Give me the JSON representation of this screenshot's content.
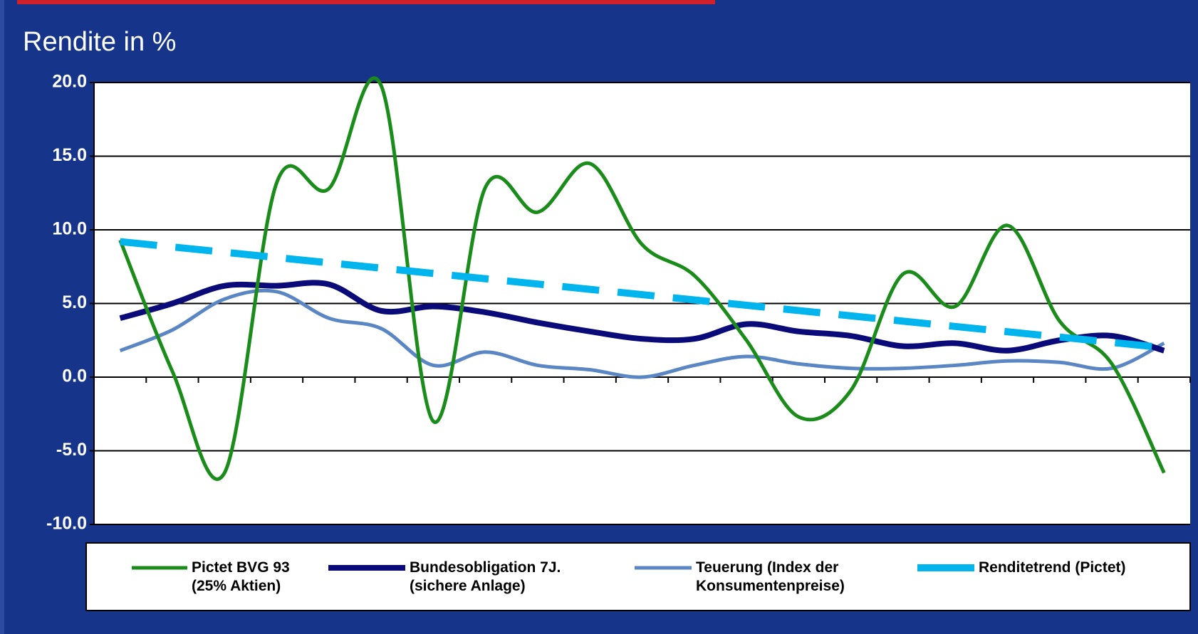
{
  "chart_data": {
    "type": "line",
    "title": "Rendite in %",
    "categories": [
      null,
      null,
      null,
      null,
      null,
      null,
      null,
      null,
      null,
      null,
      null,
      null,
      null,
      null,
      null,
      null,
      null,
      null,
      null,
      null,
      null
    ],
    "ylim": [
      -10,
      20
    ],
    "yticks": [
      {
        "value": -10,
        "label": "-10.0"
      },
      {
        "value": -5,
        "label": "-5.0"
      },
      {
        "value": 0,
        "label": "0.0"
      },
      {
        "value": 5,
        "label": "5.0"
      },
      {
        "value": 10,
        "label": "10.0"
      },
      {
        "value": 15,
        "label": "15.0"
      },
      {
        "value": 20,
        "label": "20.0"
      }
    ],
    "grid": true,
    "series": [
      {
        "name": "Pictet BVG 93\n(25% Aktien)",
        "color": "#1a8c1a",
        "values": [
          9.3,
          0.4,
          -6.5,
          13.2,
          12.8,
          19.8,
          -3.0,
          12.9,
          11.2,
          14.5,
          9.0,
          6.9,
          2.5,
          -2.7,
          -0.9,
          7.0,
          4.8,
          10.3,
          3.8,
          0.9,
          -6.5
        ]
      },
      {
        "name": "Bundesobligation 7J.\n(sichere Anlage)",
        "color": "#0a0a78",
        "values": [
          4.0,
          5.0,
          6.2,
          6.2,
          6.3,
          4.5,
          4.8,
          4.4,
          3.7,
          3.1,
          2.6,
          2.6,
          3.6,
          3.1,
          2.8,
          2.1,
          2.3,
          1.8,
          2.5,
          2.8,
          1.8
        ]
      },
      {
        "name": "Teuerung (Index der\nKonsumentenpreise)",
        "color": "#5a86c4",
        "values": [
          1.8,
          3.2,
          5.3,
          5.8,
          4.0,
          3.3,
          0.8,
          1.7,
          0.8,
          0.5,
          0.0,
          0.8,
          1.4,
          0.9,
          0.6,
          0.6,
          0.8,
          1.1,
          1.0,
          0.6,
          2.3
        ]
      },
      {
        "name": "Renditetrend (Pictet)",
        "color": "#00b4ee",
        "dashed": true,
        "values": [
          9.2,
          8.84,
          8.48,
          8.12,
          7.76,
          7.4,
          7.04,
          6.68,
          6.32,
          5.96,
          5.6,
          5.24,
          4.88,
          4.52,
          4.16,
          3.8,
          3.44,
          3.08,
          2.72,
          2.36,
          2.0
        ]
      }
    ]
  }
}
